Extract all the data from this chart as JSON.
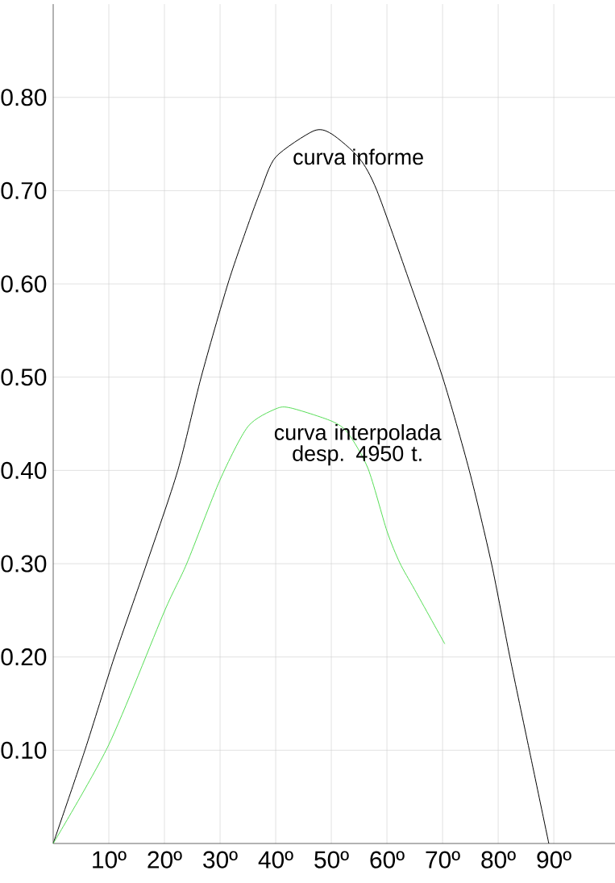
{
  "chart_data": {
    "type": "line",
    "xlim": [
      0,
      101
    ],
    "ylim": [
      0,
      0.9
    ],
    "xticks": [
      {
        "value": 10,
        "label": "10º"
      },
      {
        "value": 20,
        "label": "20º"
      },
      {
        "value": 30,
        "label": "30º"
      },
      {
        "value": 40,
        "label": "40º"
      },
      {
        "value": 50,
        "label": "50º"
      },
      {
        "value": 60,
        "label": "60º"
      },
      {
        "value": 70,
        "label": "70º"
      },
      {
        "value": 80,
        "label": "80º"
      },
      {
        "value": 90,
        "label": "90º"
      }
    ],
    "yticks": [
      {
        "value": 0.1,
        "label": "0.10"
      },
      {
        "value": 0.2,
        "label": "0.20"
      },
      {
        "value": 0.3,
        "label": "0.30"
      },
      {
        "value": 0.4,
        "label": "0.40"
      },
      {
        "value": 0.5,
        "label": "0.50"
      },
      {
        "value": 0.6,
        "label": "0.60"
      },
      {
        "value": 0.7,
        "label": "0.70"
      },
      {
        "value": 0.8,
        "label": "0.80"
      }
    ],
    "grid": true,
    "legend": false,
    "marker": "none",
    "line_style": "solid",
    "series": [
      {
        "name": "curva informe",
        "color": "#000000",
        "x": [
          0,
          5.7,
          11.0,
          16.8,
          22.4,
          26.6,
          31.4,
          35,
          37.3,
          40,
          46.8,
          50,
          55,
          58.2,
          64.2,
          70,
          74.8,
          78.8,
          82.1,
          85.6,
          89.1
        ],
        "values": [
          0,
          0.1,
          0.2,
          0.3,
          0.4,
          0.5,
          0.6,
          0.663,
          0.7,
          0.736,
          0.764,
          0.761,
          0.735,
          0.7,
          0.6,
          0.5,
          0.4,
          0.3,
          0.2,
          0.1,
          0
        ]
      },
      {
        "name": "curva interpolada desp. 4950 t.",
        "color": "#55dd55",
        "x": [
          0,
          10,
          20,
          24,
          30,
          35,
          40,
          42.7,
          50,
          53,
          56.6,
          60,
          62.3,
          65,
          70.4
        ],
        "values": [
          0,
          0.106,
          0.249,
          0.3,
          0.39,
          0.447,
          0.466,
          0.467,
          0.453,
          0.44,
          0.402,
          0.335,
          0.301,
          0.272,
          0.214
        ]
      }
    ]
  }
}
